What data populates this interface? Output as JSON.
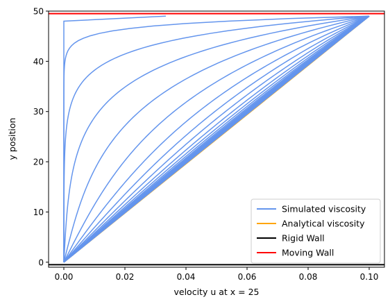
{
  "chart_data": {
    "type": "line",
    "xlabel": "velocity u at x = 25",
    "ylabel": "y position",
    "xlim": [
      -0.005,
      0.105
    ],
    "ylim": [
      -1,
      50
    ],
    "x_ticks": [
      "0.00",
      "0.02",
      "0.04",
      "0.06",
      "0.08",
      "0.10"
    ],
    "y_ticks": [
      "0",
      "10",
      "20",
      "30",
      "40",
      "50"
    ],
    "grid": false,
    "legend_placement": "bottom-right",
    "colors": {
      "simulated": "#6495ED",
      "analytical": "#FFA500",
      "rigid_wall": "#000000",
      "moving_wall": "#FF0000"
    },
    "series": [
      {
        "name": "Simulated viscosity",
        "kind": "simulated-profiles",
        "wall_velocity": 0.1,
        "channel_top_y": 49,
        "profile_count": 30,
        "first_profile_points": [
          [
            0,
            0
          ],
          [
            0,
            48
          ],
          [
            0.0334,
            49
          ]
        ]
      },
      {
        "name": "Analytical viscosity",
        "kind": "analytical-linear",
        "points": [
          [
            0,
            0
          ],
          [
            0.1,
            49
          ]
        ]
      },
      {
        "name": "Rigid Wall",
        "kind": "hline",
        "y": -0.5
      },
      {
        "name": "Moving Wall",
        "kind": "hline",
        "y": 49.5
      }
    ]
  }
}
